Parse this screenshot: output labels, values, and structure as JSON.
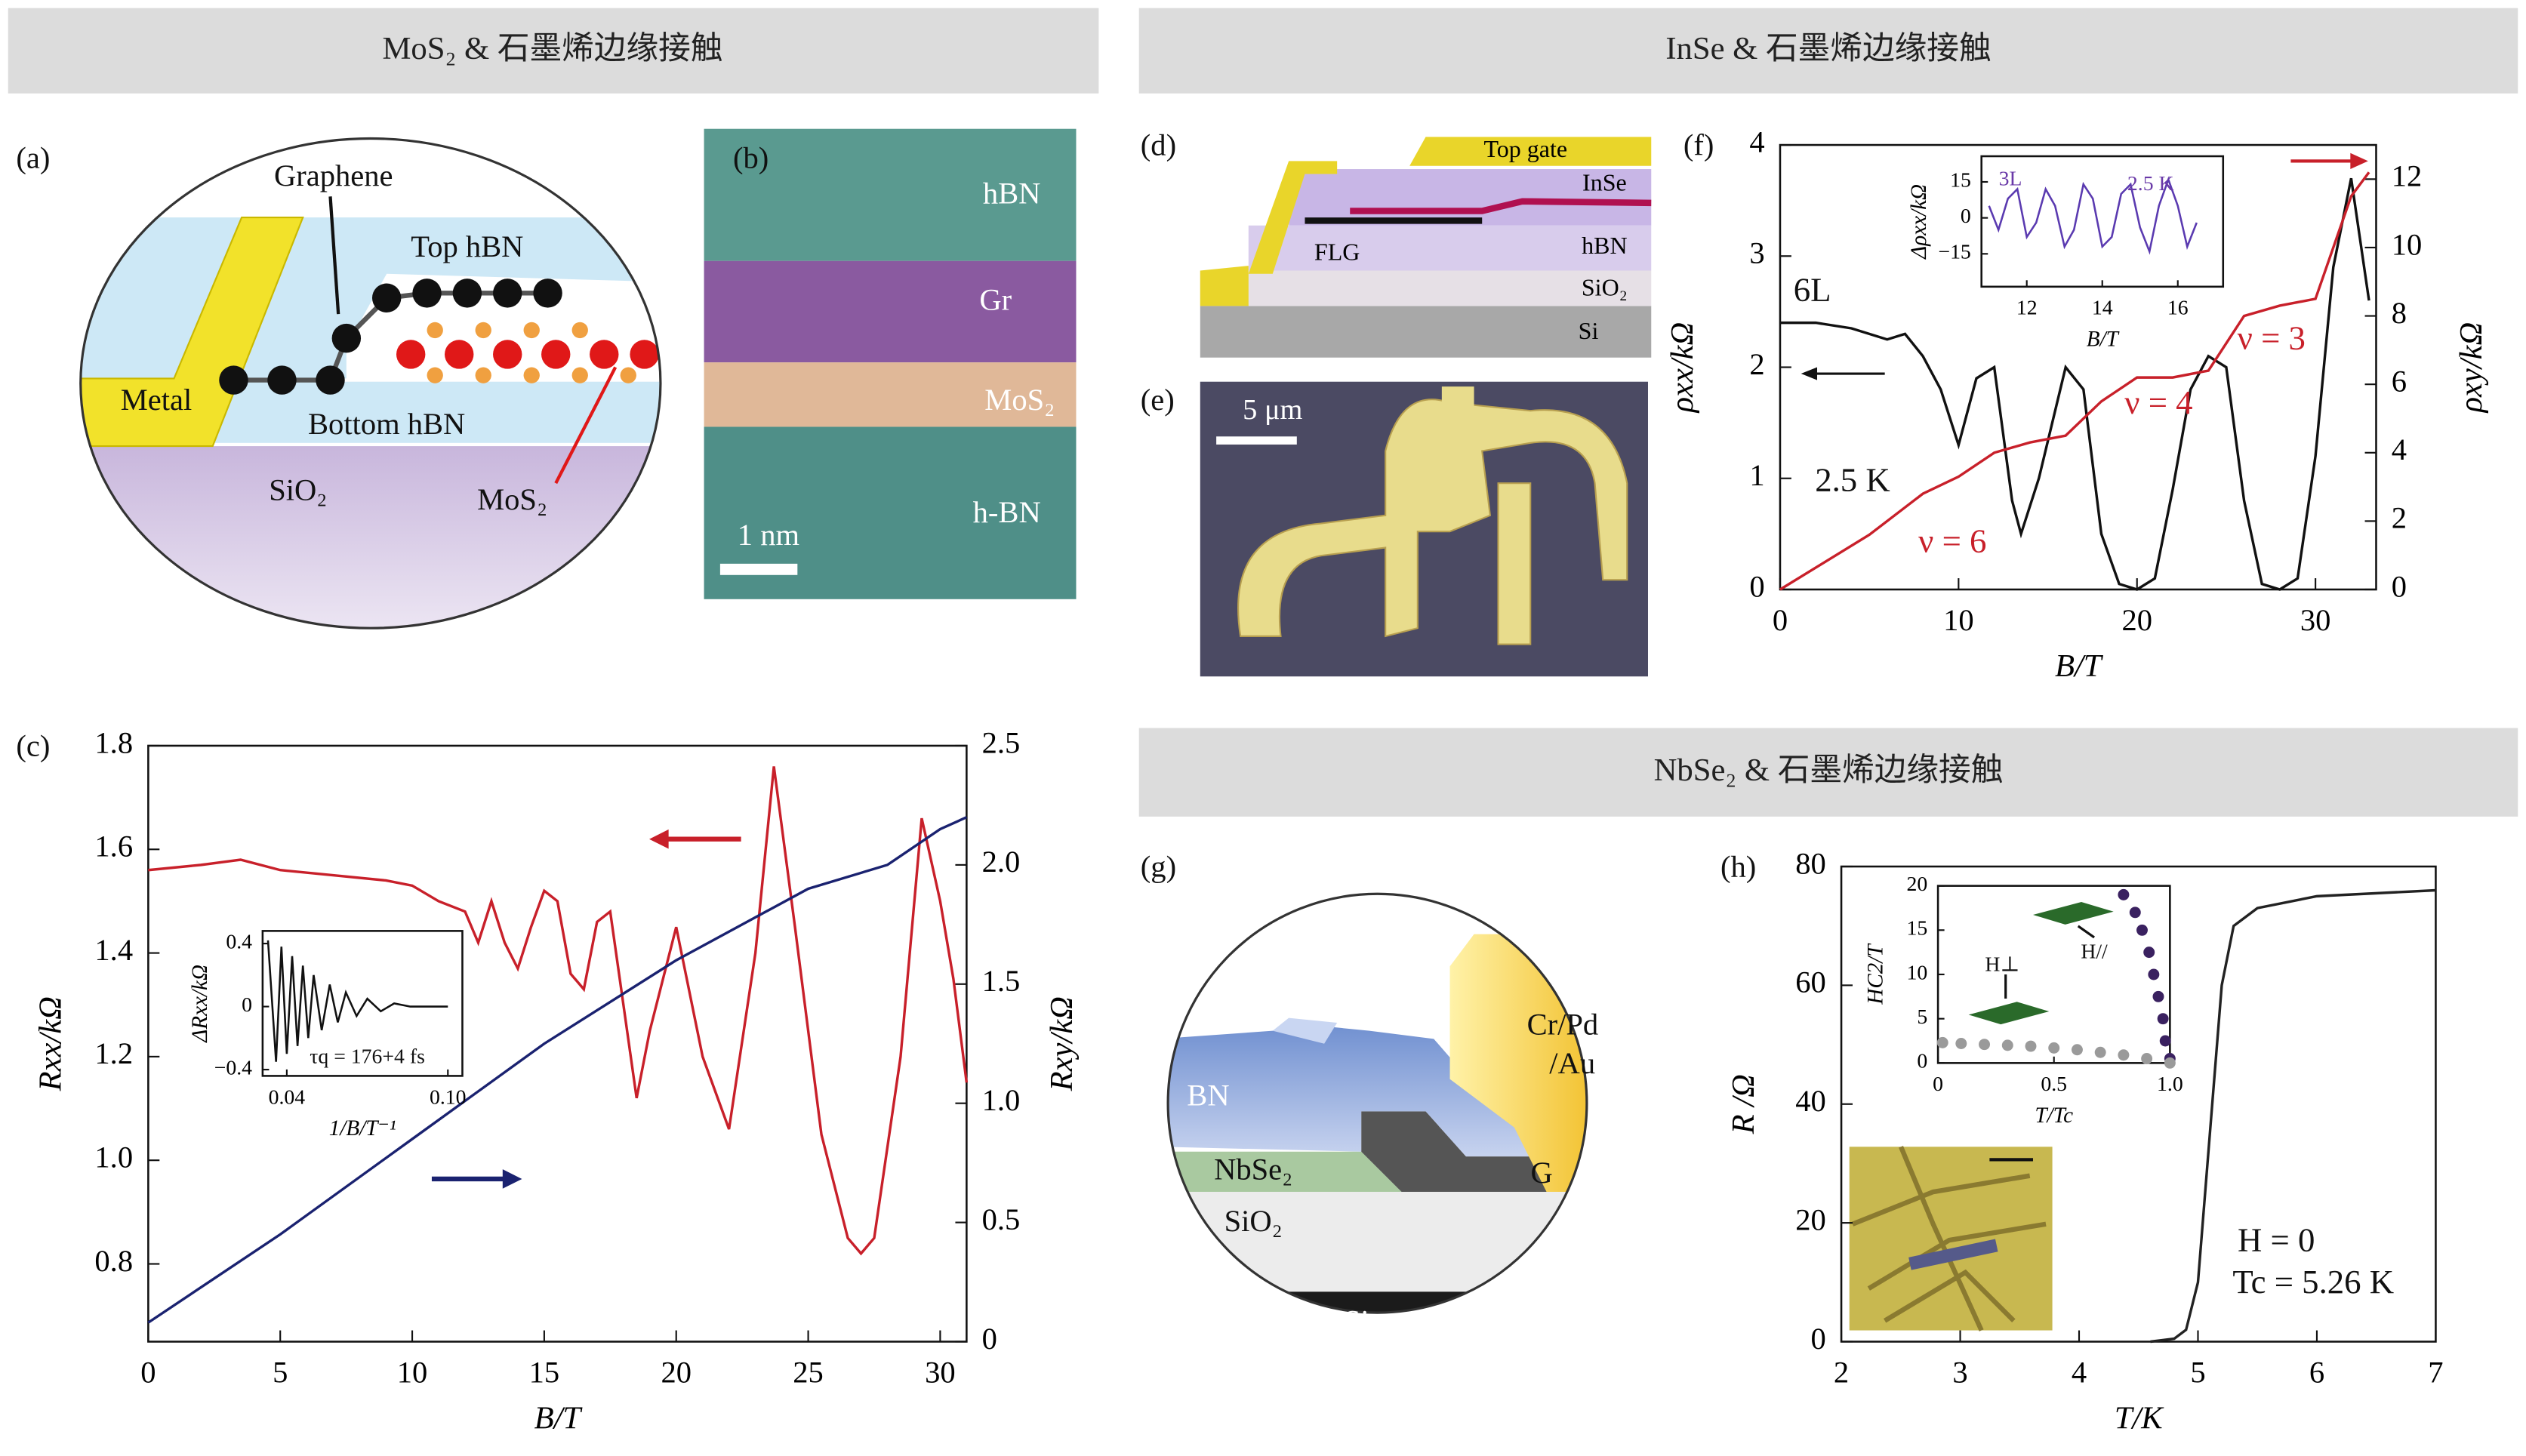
{
  "sections": [
    "MoS₂ & 石墨烯边缘接触",
    "InSe & 石墨烯边缘接触",
    "NbSe₂ & 石墨烯边缘接触"
  ],
  "panels": {
    "a": {
      "label": "(a)",
      "graphene": "Graphene",
      "top_hbn": "Top hBN",
      "metal": "Metal",
      "bottom_hbn": "Bottom hBN",
      "sio2": "SiO₂",
      "mos2": "MoS₂"
    },
    "b": {
      "label": "(b)",
      "hbn": "hBN",
      "gr": "Gr",
      "mos2": "MoS₂",
      "h_bn": "h-BN",
      "scale": "1 nm"
    },
    "c": {
      "label": "(c)"
    },
    "d": {
      "label": "(d)",
      "top_gate": "Top gate",
      "inse": "InSe",
      "hbn": "hBN",
      "flg": "FLG",
      "sio2": "SiO₂",
      "si": "Si"
    },
    "e": {
      "label": "(e)",
      "scale": "5 μm"
    },
    "f": {
      "label": "(f)"
    },
    "g": {
      "label": "(g)",
      "crpd": "Cr/Pd",
      "au": "/Au",
      "bn": "BN",
      "nbse2": "NbSe₂",
      "sio2": "SiO₂",
      "g": "G",
      "si": "Si"
    },
    "h": {
      "label": "(h)"
    }
  },
  "chart_data": [
    {
      "type": "line",
      "xlabel": "B/T",
      "ylabel": "Rxx/kΩ",
      "y2label": "Rxy/kΩ",
      "xlim": [
        0,
        31
      ],
      "xticks": [
        0,
        5,
        10,
        15,
        20,
        25,
        30
      ],
      "ylim": [
        0.65,
        1.8
      ],
      "yticks": [
        0.8,
        {
          "value": 1,
          "label": "1.0"
        },
        1.2,
        1.4,
        1.6,
        1.8
      ],
      "y2lim": [
        0,
        2.5
      ],
      "y2ticks": [
        0,
        0.5,
        {
          "value": 1,
          "label": "1.0"
        },
        1.5,
        {
          "value": 2,
          "label": "2.0"
        },
        2.5
      ],
      "series": [
        {
          "color": "#c8202a",
          "x": [
            0,
            2,
            3.5,
            5,
            7,
            9,
            10,
            11,
            12,
            12.5,
            13,
            13.5,
            14,
            14.5,
            15,
            15.5,
            16,
            16.5,
            17,
            17.5,
            18,
            18.5,
            19,
            20,
            21,
            22,
            23,
            23.7,
            24.5,
            25.5,
            26.5,
            27,
            27.5,
            28.5,
            29.3,
            30,
            30.5,
            31
          ],
          "values": [
            1.56,
            1.57,
            1.58,
            1.56,
            1.55,
            1.54,
            1.53,
            1.5,
            1.48,
            1.42,
            1.5,
            1.42,
            1.37,
            1.45,
            1.52,
            1.5,
            1.36,
            1.33,
            1.46,
            1.48,
            1.3,
            1.12,
            1.25,
            1.45,
            1.2,
            1.06,
            1.4,
            1.76,
            1.45,
            1.05,
            0.85,
            0.82,
            0.85,
            1.2,
            1.66,
            1.5,
            1.35,
            1.15
          ]
        },
        {
          "color": "#1a2270",
          "axis": "y2",
          "x": [
            0,
            5,
            10,
            15,
            20,
            25,
            28,
            30,
            31
          ],
          "values": [
            0.08,
            0.45,
            0.85,
            1.25,
            1.6,
            1.9,
            2.0,
            2.15,
            2.2
          ]
        }
      ]
    },
    {
      "type": "line",
      "xlabel": "1/B/T⁻¹",
      "ylabel": "ΔRxx/kΩ",
      "xlim": [
        0.031,
        0.1054
      ],
      "xticks": [
        0.04,
        {
          "value": 0.1,
          "label": "0.10"
        }
      ],
      "ylim": [
        -0.44,
        0.48
      ],
      "yticks": [
        {
          "value": -0.4,
          "label": "−0.4"
        },
        0,
        0.4
      ],
      "annotations": [
        {
          "text": "τq = 176+4 fs",
          "color": "#111"
        }
      ],
      "series": [
        {
          "color": "#111",
          "x": [
            0.033,
            0.036,
            0.038,
            0.04,
            0.042,
            0.044,
            0.046,
            0.048,
            0.05,
            0.053,
            0.056,
            0.059,
            0.062,
            0.066,
            0.07,
            0.075,
            0.08,
            0.086,
            0.092,
            0.1
          ],
          "values": [
            0.42,
            -0.35,
            0.38,
            -0.3,
            0.32,
            -0.25,
            0.26,
            -0.2,
            0.2,
            -0.15,
            0.14,
            -0.1,
            0.09,
            -0.06,
            0.05,
            -0.03,
            0.02,
            0,
            0,
            0
          ]
        }
      ]
    },
    {
      "type": "line",
      "xlabel": "B/T",
      "ylabel": "ρxx/kΩ",
      "y2label": "ρxy/kΩ",
      "xlim": [
        0,
        33.4
      ],
      "xticks": [
        0,
        10,
        20,
        30
      ],
      "ylim": [
        0,
        4
      ],
      "yticks": [
        0,
        1,
        2,
        3,
        4
      ],
      "y2lim": [
        0,
        13
      ],
      "y2ticks": [
        0,
        2,
        4,
        6,
        8,
        10,
        12
      ],
      "annotations": [
        {
          "text": "6L",
          "color": "#111"
        },
        {
          "text": "2.5 K",
          "color": "#111"
        },
        {
          "text": "ν = 6",
          "color": "#c8202a"
        },
        {
          "text": "ν = 4",
          "color": "#c8202a"
        },
        {
          "text": "ν = 3",
          "color": "#c8202a"
        }
      ],
      "series": [
        {
          "color": "#111",
          "x": [
            0,
            2,
            4,
            6,
            7,
            8,
            9,
            10,
            11,
            12,
            13,
            13.5,
            14.5,
            16,
            17,
            18,
            19,
            20,
            21,
            22,
            23,
            24,
            25,
            26,
            27,
            28,
            29,
            30,
            31,
            32,
            33
          ],
          "values": [
            2.4,
            2.4,
            2.35,
            2.25,
            2.3,
            2.1,
            1.8,
            1.3,
            1.9,
            2.0,
            0.8,
            0.5,
            1.0,
            2.0,
            1.8,
            0.5,
            0.05,
            0,
            0.1,
            0.9,
            1.8,
            2.1,
            2.0,
            0.8,
            0.05,
            0,
            0.1,
            1.2,
            2.9,
            3.7,
            2.6
          ]
        },
        {
          "color": "#c8202a",
          "axis": "y2",
          "x": [
            0,
            5,
            8,
            10,
            12,
            14,
            16,
            18,
            20,
            22,
            24,
            26,
            28,
            30,
            31,
            32,
            33
          ],
          "values": [
            0,
            1.6,
            2.8,
            3.3,
            4.0,
            4.3,
            4.5,
            5.5,
            6.2,
            6.2,
            6.4,
            8.0,
            8.3,
            8.5,
            10.0,
            11.5,
            12.2
          ]
        }
      ]
    },
    {
      "type": "line",
      "xlabel": "B/T",
      "ylabel": "Δρxx/kΩ",
      "xlim": [
        10.8,
        17.2
      ],
      "xticks": [
        12,
        14,
        16
      ],
      "ylim": [
        -28.7,
        25.7
      ],
      "yticks": [
        {
          "value": -15,
          "label": "−15"
        },
        0,
        15
      ],
      "annotations": [
        {
          "text": "3L",
          "color": "#6a3aa8"
        },
        {
          "text": "2.5 K",
          "color": "#6a3aa8"
        }
      ],
      "series": [
        {
          "color": "#5a3ab0",
          "x": [
            11,
            11.25,
            11.5,
            11.75,
            12,
            12.25,
            12.5,
            12.75,
            13,
            13.25,
            13.5,
            13.75,
            14,
            14.25,
            14.5,
            14.75,
            15,
            15.25,
            15.5,
            15.75,
            16,
            16.25,
            16.5
          ],
          "values": [
            5,
            -5,
            8,
            12,
            -8,
            -2,
            12,
            5,
            -12,
            -5,
            14,
            8,
            -12,
            -8,
            10,
            14,
            -4,
            -14,
            5,
            16,
            5,
            -12,
            -2
          ]
        }
      ]
    },
    {
      "type": "line",
      "xlabel": "T/K",
      "ylabel": "R /Ω",
      "xlim": [
        2,
        7
      ],
      "xticks": [
        2,
        3,
        4,
        5,
        6,
        7
      ],
      "ylim": [
        0,
        80
      ],
      "yticks": [
        0,
        20,
        40,
        60,
        80
      ],
      "annotations": [
        {
          "text": "H = 0",
          "color": "#111"
        },
        {
          "text": "Tc = 5.26 K",
          "color": "#111"
        }
      ],
      "series": [
        {
          "color": "#222",
          "x": [
            4.6,
            4.8,
            4.9,
            5.0,
            5.1,
            5.2,
            5.3,
            5.5,
            6,
            7
          ],
          "values": [
            0,
            0.5,
            2,
            10,
            35,
            60,
            70,
            73,
            75,
            76
          ]
        }
      ]
    },
    {
      "type": "scatter",
      "xlabel": "T/Tc",
      "ylabel": "HC2/T",
      "xlim": [
        0,
        1
      ],
      "xticks": [
        0,
        0.5,
        {
          "value": 1,
          "label": "1.0"
        }
      ],
      "ylim": [
        0,
        20
      ],
      "yticks": [
        0,
        5,
        10,
        15,
        20
      ],
      "annotations": [
        {
          "text": "H⊥",
          "color": "#111"
        },
        {
          "text": "H//",
          "color": "#111"
        }
      ],
      "series": [
        {
          "color": "#3a2160",
          "x": [
            0.8,
            0.85,
            0.88,
            0.91,
            0.93,
            0.95,
            0.97,
            0.98,
            1.0
          ],
          "values": [
            19,
            17,
            15,
            12.5,
            10,
            7.5,
            5,
            2.5,
            0.5
          ]
        },
        {
          "color": "#9a9a9a",
          "x": [
            0.02,
            0.1,
            0.2,
            0.3,
            0.4,
            0.5,
            0.6,
            0.7,
            0.8,
            0.9,
            1.0
          ],
          "values": [
            2.3,
            2.2,
            2.1,
            2.0,
            1.9,
            1.7,
            1.5,
            1.2,
            0.9,
            0.5,
            0
          ]
        }
      ]
    }
  ]
}
